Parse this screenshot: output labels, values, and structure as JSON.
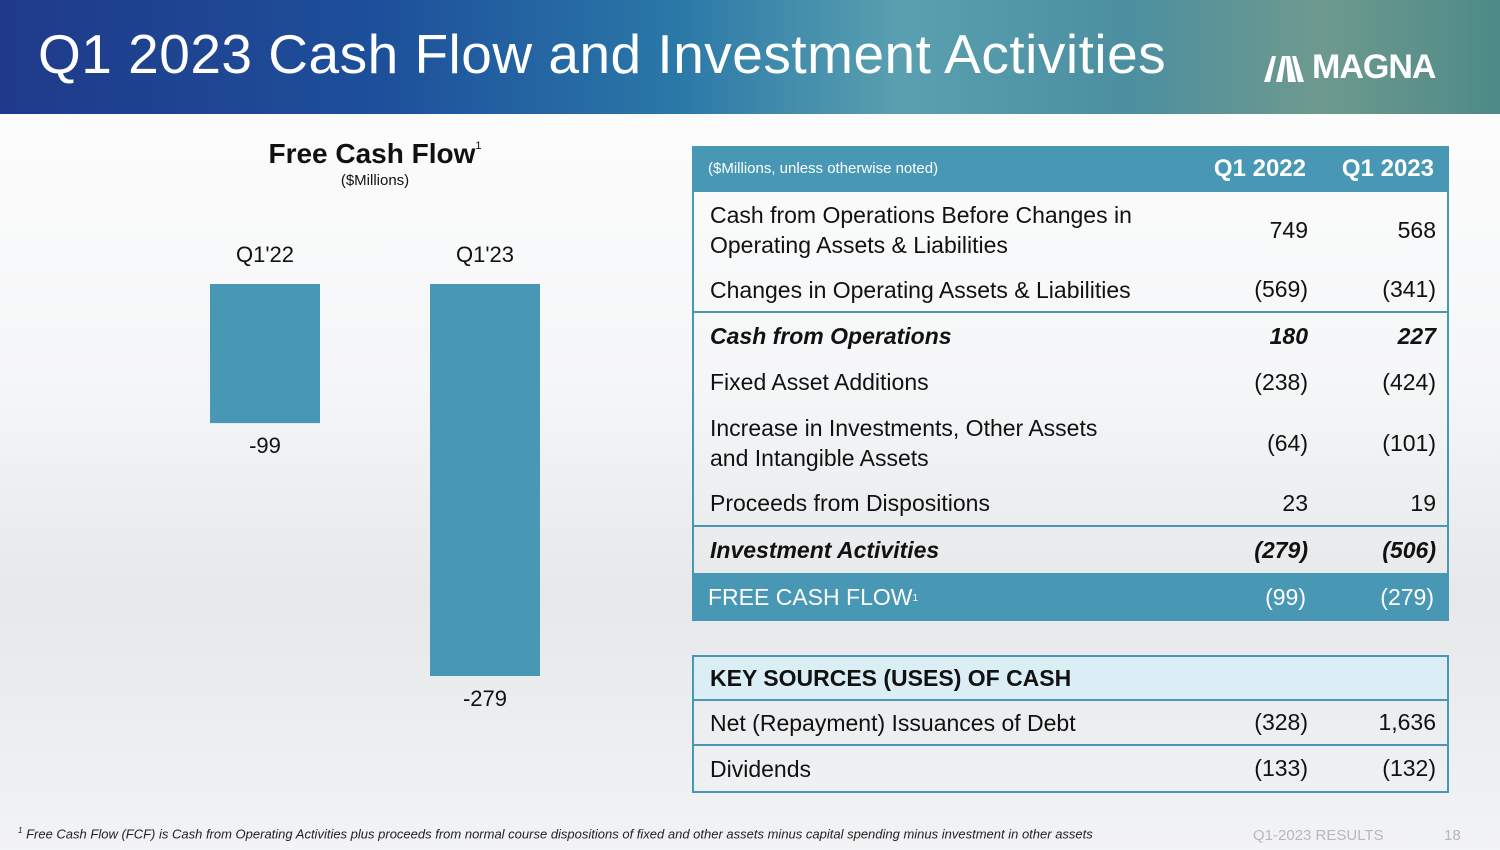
{
  "header": {
    "title": "Q1 2023 Cash Flow and Investment Activities",
    "logo_text": "MAGNA"
  },
  "chart_data": {
    "type": "bar",
    "title": "Free Cash Flow",
    "title_superscript": "1",
    "subtitle": "($Millions)",
    "categories": [
      "Q1'22",
      "Q1'23"
    ],
    "values": [
      -99,
      -279
    ],
    "data_labels": [
      "-99",
      "-279"
    ],
    "bar_color": "#4797b5",
    "grid": false
  },
  "table": {
    "header": {
      "label": "($Millions, unless otherwise noted)",
      "col1": "Q1 2022",
      "col2": "Q1 2023"
    },
    "rows": [
      {
        "label_line1": "Cash from Operations Before Changes in",
        "label_line2": "Operating Assets & Liabilities",
        "v1": "749",
        "v2": "568"
      },
      {
        "label": "Changes in Operating Assets & Liabilities",
        "v1": "(569)",
        "v2": "(341)"
      },
      {
        "label": "Cash from Operations",
        "v1": "180",
        "v2": "227"
      },
      {
        "label": "Fixed Asset Additions",
        "v1": "(238)",
        "v2": "(424)"
      },
      {
        "label_line1": "Increase in Investments, Other Assets",
        "label_line2": "and Intangible Assets",
        "v1": "(64)",
        "v2": "(101)"
      },
      {
        "label": "Proceeds from Dispositions",
        "v1": "23",
        "v2": "19"
      },
      {
        "label": "Investment Activities",
        "v1": "(279)",
        "v2": "(506)"
      },
      {
        "label": "FREE CASH FLOW",
        "sup": "1",
        "v1": "(99)",
        "v2": "(279)"
      }
    ]
  },
  "key_sources": {
    "title": "KEY SOURCES (USES) OF CASH",
    "rows": [
      {
        "label": "Net (Repayment) Issuances of Debt",
        "v1": "(328)",
        "v2": "1,636"
      },
      {
        "label": "Dividends",
        "v1": "(133)",
        "v2": "(132)"
      }
    ]
  },
  "footer": {
    "footnote_mark": "1",
    "footnote": "Free Cash Flow (FCF) is Cash from Operating Activities plus proceeds from normal course dispositions of fixed and other assets minus capital spending minus investment in other assets",
    "results_label": "Q1-2023 RESULTS",
    "page_number": "18"
  },
  "colors": {
    "accent": "#4797b5",
    "light_accent": "#dbeef5",
    "header_dark": "#1f3a8a"
  }
}
